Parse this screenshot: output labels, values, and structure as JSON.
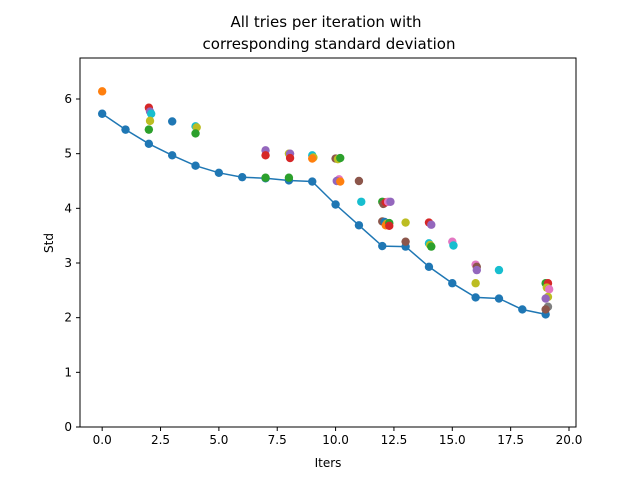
{
  "chart_data": {
    "type": "scatter",
    "title_lines": [
      "All tries per iteration with",
      "corresponding standard deviation"
    ],
    "xlabel": "Iters",
    "ylabel": "Std",
    "xlim": [
      -0.95,
      20.3
    ],
    "ylim": [
      0,
      6.75
    ],
    "xticks": [
      0.0,
      2.5,
      5.0,
      7.5,
      10.0,
      12.5,
      15.0,
      17.5,
      20.0
    ],
    "xtick_labels": [
      "0.0",
      "2.5",
      "5.0",
      "7.5",
      "10.0",
      "12.5",
      "15.0",
      "17.5",
      "20.0"
    ],
    "yticks": [
      0,
      1,
      2,
      3,
      4,
      5,
      6
    ],
    "ytick_labels": [
      "0",
      "1",
      "2",
      "3",
      "4",
      "5",
      "6"
    ],
    "grid": false,
    "line_series": {
      "color": "#1f77b4",
      "x": [
        0,
        1,
        2,
        3,
        4,
        5,
        6,
        7,
        8,
        9,
        10,
        11,
        12,
        13,
        14,
        15,
        16,
        17,
        18,
        19
      ],
      "y": [
        5.73,
        5.44,
        5.18,
        4.97,
        4.78,
        4.65,
        4.57,
        4.55,
        4.51,
        4.49,
        4.07,
        3.69,
        3.31,
        3.3,
        2.93,
        2.63,
        2.37,
        2.35,
        2.15,
        2.06
      ]
    },
    "scatter_points": [
      {
        "x": 0.0,
        "y": 6.14,
        "color": "#ff7f0e"
      },
      {
        "x": 2.0,
        "y": 5.84,
        "color": "#d62728"
      },
      {
        "x": 2.05,
        "y": 5.77,
        "color": "#9467bd"
      },
      {
        "x": 2.1,
        "y": 5.73,
        "color": "#17becf"
      },
      {
        "x": 2.05,
        "y": 5.6,
        "color": "#bcbd22"
      },
      {
        "x": 2.0,
        "y": 5.44,
        "color": "#2ca02c"
      },
      {
        "x": 3.0,
        "y": 5.59,
        "color": "#1f77b4"
      },
      {
        "x": 4.0,
        "y": 5.5,
        "color": "#17becf"
      },
      {
        "x": 4.05,
        "y": 5.48,
        "color": "#bcbd22"
      },
      {
        "x": 4.0,
        "y": 5.37,
        "color": "#2ca02c"
      },
      {
        "x": 7.0,
        "y": 5.06,
        "color": "#9467bd"
      },
      {
        "x": 7.0,
        "y": 4.97,
        "color": "#d62728"
      },
      {
        "x": 7.0,
        "y": 4.56,
        "color": "#2ca02c"
      },
      {
        "x": 8.0,
        "y": 5.0,
        "color": "#bcbd22"
      },
      {
        "x": 8.05,
        "y": 5.0,
        "color": "#9467bd"
      },
      {
        "x": 8.05,
        "y": 4.92,
        "color": "#d62728"
      },
      {
        "x": 8.0,
        "y": 4.56,
        "color": "#2ca02c"
      },
      {
        "x": 9.0,
        "y": 4.97,
        "color": "#17becf"
      },
      {
        "x": 9.05,
        "y": 4.93,
        "color": "#bcbd22"
      },
      {
        "x": 9.0,
        "y": 4.91,
        "color": "#ff7f0e"
      },
      {
        "x": 10.0,
        "y": 4.91,
        "color": "#8c564b"
      },
      {
        "x": 10.1,
        "y": 4.9,
        "color": "#bcbd22"
      },
      {
        "x": 10.2,
        "y": 4.92,
        "color": "#2ca02c"
      },
      {
        "x": 10.15,
        "y": 4.53,
        "color": "#e377c2"
      },
      {
        "x": 10.05,
        "y": 4.5,
        "color": "#9467bd"
      },
      {
        "x": 10.2,
        "y": 4.49,
        "color": "#ff7f0e"
      },
      {
        "x": 11.0,
        "y": 4.5,
        "color": "#8c564b"
      },
      {
        "x": 11.1,
        "y": 4.12,
        "color": "#17becf"
      },
      {
        "x": 12.0,
        "y": 4.12,
        "color": "#2ca02c"
      },
      {
        "x": 12.05,
        "y": 4.08,
        "color": "#8c564b"
      },
      {
        "x": 12.15,
        "y": 4.11,
        "color": "#d62728"
      },
      {
        "x": 12.25,
        "y": 4.12,
        "color": "#e377c2"
      },
      {
        "x": 12.35,
        "y": 4.12,
        "color": "#9467bd"
      },
      {
        "x": 12.0,
        "y": 3.76,
        "color": "#8c564b"
      },
      {
        "x": 12.1,
        "y": 3.75,
        "color": "#1f77b4"
      },
      {
        "x": 12.2,
        "y": 3.72,
        "color": "#bcbd22"
      },
      {
        "x": 12.15,
        "y": 3.69,
        "color": "#ff7f0e"
      },
      {
        "x": 12.3,
        "y": 3.73,
        "color": "#2ca02c"
      },
      {
        "x": 12.3,
        "y": 3.68,
        "color": "#d62728"
      },
      {
        "x": 13.0,
        "y": 3.74,
        "color": "#bcbd22"
      },
      {
        "x": 13.0,
        "y": 3.39,
        "color": "#8c564b"
      },
      {
        "x": 14.0,
        "y": 3.74,
        "color": "#d62728"
      },
      {
        "x": 14.1,
        "y": 3.7,
        "color": "#9467bd"
      },
      {
        "x": 14.0,
        "y": 3.36,
        "color": "#17becf"
      },
      {
        "x": 14.05,
        "y": 3.33,
        "color": "#bcbd22"
      },
      {
        "x": 14.1,
        "y": 3.3,
        "color": "#2ca02c"
      },
      {
        "x": 15.0,
        "y": 3.39,
        "color": "#e377c2"
      },
      {
        "x": 15.05,
        "y": 3.32,
        "color": "#17becf"
      },
      {
        "x": 16.0,
        "y": 2.97,
        "color": "#e377c2"
      },
      {
        "x": 16.05,
        "y": 2.93,
        "color": "#8c564b"
      },
      {
        "x": 16.05,
        "y": 2.87,
        "color": "#9467bd"
      },
      {
        "x": 16.0,
        "y": 2.63,
        "color": "#bcbd22"
      },
      {
        "x": 17.0,
        "y": 2.87,
        "color": "#17becf"
      },
      {
        "x": 19.0,
        "y": 2.63,
        "color": "#2ca02c"
      },
      {
        "x": 19.1,
        "y": 2.63,
        "color": "#d62728"
      },
      {
        "x": 19.05,
        "y": 2.55,
        "color": "#bcbd22"
      },
      {
        "x": 19.15,
        "y": 2.52,
        "color": "#e377c2"
      },
      {
        "x": 19.1,
        "y": 2.38,
        "color": "#bcbd22"
      },
      {
        "x": 19.0,
        "y": 2.35,
        "color": "#9467bd"
      },
      {
        "x": 19.1,
        "y": 2.2,
        "color": "#7f7f7f"
      },
      {
        "x": 19.0,
        "y": 2.15,
        "color": "#8c564b"
      }
    ]
  }
}
